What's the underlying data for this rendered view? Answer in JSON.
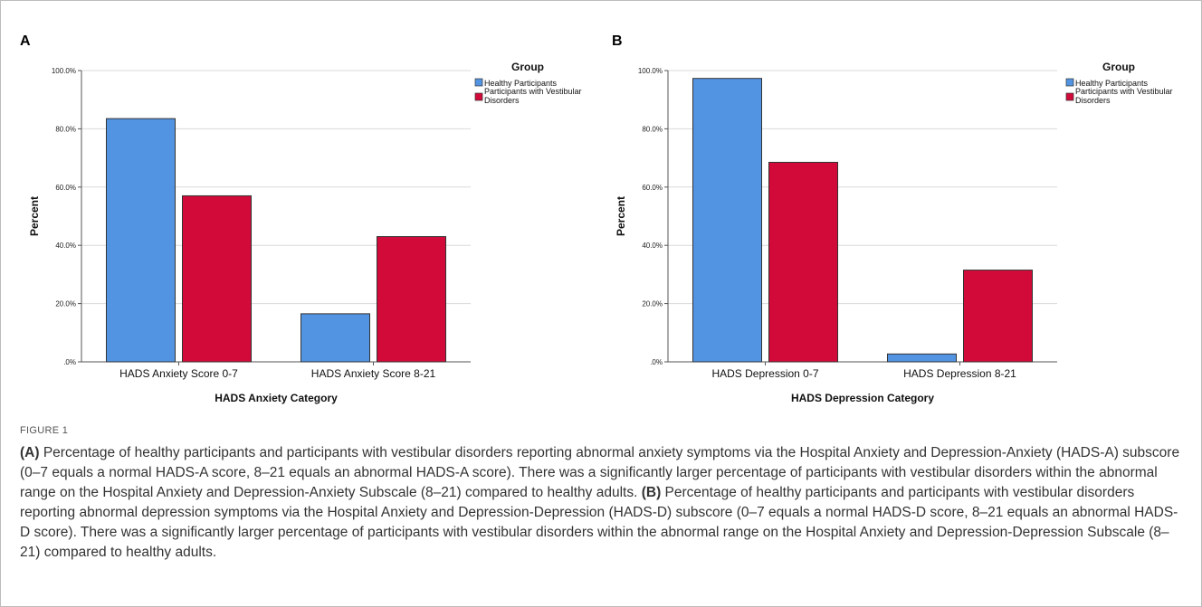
{
  "chart_data": [
    {
      "type": "bar",
      "panel": "A",
      "categories": [
        "HADS Anxiety Score 0-7",
        "HADS Anxiety Score 8-21"
      ],
      "series": [
        {
          "name": "Healthy Participants",
          "values": [
            83.5,
            16.5
          ],
          "color": "#5294e2"
        },
        {
          "name": "Participants with Vestibular Disorders",
          "values": [
            57.0,
            43.0
          ],
          "color": "#d20a3a"
        }
      ],
      "xlabel": "HADS Anxiety Category",
      "ylabel": "Percent",
      "ylim": [
        0,
        100
      ],
      "yticks": [
        ".0%",
        "20.0%",
        "40.0%",
        "60.0%",
        "80.0%",
        "100.0%"
      ],
      "legend_title": "Group",
      "legend_position": "right",
      "grid": true
    },
    {
      "type": "bar",
      "panel": "B",
      "categories": [
        "HADS Depression 0-7",
        "HADS Depression 8-21"
      ],
      "series": [
        {
          "name": "Healthy Participants",
          "values": [
            97.3,
            2.7
          ],
          "color": "#5294e2"
        },
        {
          "name": "Participants with Vestibular Disorders",
          "values": [
            68.5,
            31.5
          ],
          "color": "#d20a3a"
        }
      ],
      "xlabel": "HADS Depression Category",
      "ylabel": "Percent",
      "ylim": [
        0,
        100
      ],
      "yticks": [
        ".0%",
        "20.0%",
        "40.0%",
        "60.0%",
        "80.0%",
        "100.0%"
      ],
      "legend_title": "Group",
      "legend_position": "right",
      "grid": true
    }
  ],
  "figure": {
    "label": "FIGURE 1",
    "caption_a_marker": "(A)",
    "caption_a_text": " Percentage of healthy participants and participants with vestibular disorders reporting abnormal anxiety symptoms via the Hospital Anxiety and Depression-Anxiety (HADS-A) subscore (0–7 equals a normal HADS-A score, 8–21 equals an abnormal HADS-A score). There was a significantly larger percentage of participants with vestibular disorders within the abnormal range on the Hospital Anxiety and Depression-Anxiety Subscale (8–21) compared to healthy adults.",
    "caption_b_marker": "(B)",
    "caption_b_text": " Percentage of healthy participants and participants with vestibular disorders reporting abnormal depression symptoms via the Hospital Anxiety and Depression-Depression (HADS-D) subscore (0–7 equals a normal HADS-D score, 8–21 equals an abnormal HADS-D score). There was a significantly larger percentage of participants with vestibular disorders within the abnormal range on the Hospital Anxiety and Depression-Depression Subscale (8–21) compared to healthy adults."
  }
}
